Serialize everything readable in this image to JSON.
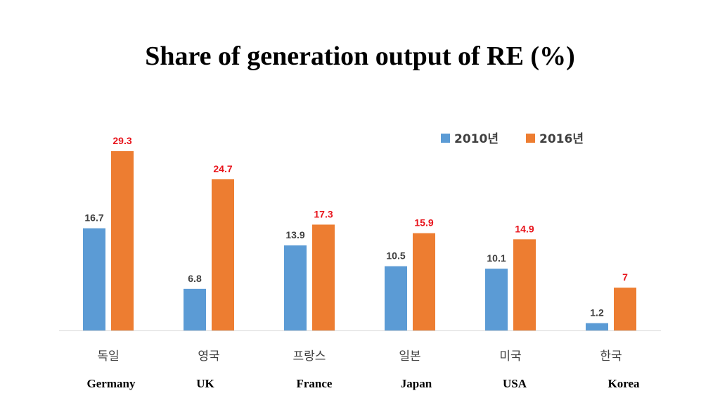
{
  "chart_data": {
    "type": "bar",
    "title": "Share of generation output of RE (%)",
    "categories": [
      "독일",
      "영국",
      "프랑스",
      "일본",
      "미국",
      "한국"
    ],
    "categories_en": [
      "Germany",
      "UK",
      "France",
      "Japan",
      "USA",
      "Korea"
    ],
    "series": [
      {
        "name": "2010년",
        "values": [
          16.7,
          6.8,
          13.9,
          10.5,
          10.1,
          1.2
        ],
        "labels": [
          "16.7",
          "6.8",
          "13.9",
          "10.5",
          "10.1",
          "1.2"
        ],
        "color": "#5b9bd5",
        "label_color": "#404040"
      },
      {
        "name": "2016년",
        "values": [
          29.3,
          24.7,
          17.3,
          15.9,
          14.9,
          7
        ],
        "labels": [
          "29.3",
          "24.7",
          "17.3",
          "15.9",
          "14.9",
          "7"
        ],
        "color": "#ed7d31",
        "label_color": "#e8141c"
      }
    ],
    "ylim": [
      0,
      29.3
    ],
    "xlabel": "",
    "ylabel": "",
    "grid": false,
    "legend": "top-right"
  }
}
